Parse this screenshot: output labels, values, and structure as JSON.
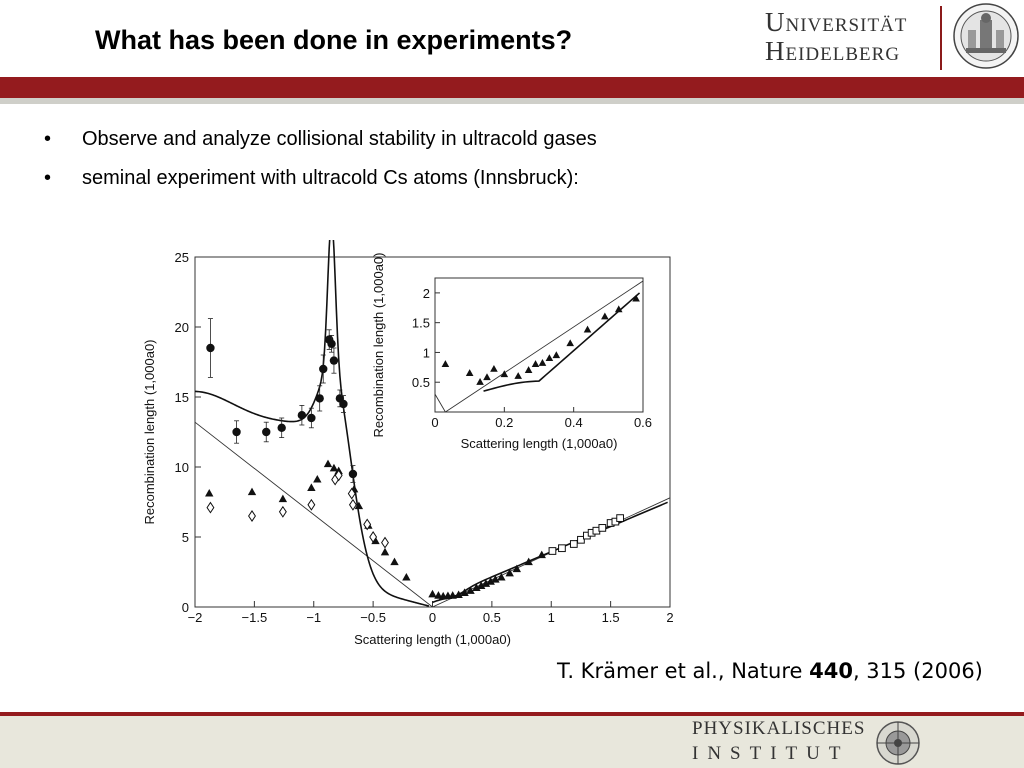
{
  "slide": {
    "title": "What has been done in experiments?",
    "bullets": [
      "Observe and analyze collisional stability in ultracold gases",
      "seminal experiment with ultracold Cs atoms (Innsbruck):"
    ],
    "bullet_symbol": "•",
    "citation_prefix": "T. Krämer et al., Nature ",
    "citation_volume": "440",
    "citation_suffix": ", 315 (2006)"
  },
  "header_logo": {
    "line1": "Universität",
    "line2": "Heidelberg",
    "icon": "university-seal-icon"
  },
  "footer_logo": {
    "line1": "PHYSIKALISCHES",
    "line2": "INSTITUT",
    "icon": "institute-emblem-icon"
  },
  "colors": {
    "accent": "#941b1e",
    "footer_bg": "#e8e7dc",
    "header_gray": "#cfcfc9"
  },
  "chart_data": [
    {
      "type": "scatter",
      "xlabel": "Scattering length (1,000a0)",
      "ylabel": "Recombination length (1,000a0)",
      "xlim": [
        -2,
        2
      ],
      "ylim": [
        0,
        25
      ],
      "xticks": [
        "−2",
        "−1.5",
        "−1",
        "−0.5",
        "0",
        "0.5",
        "1",
        "1.5",
        "2"
      ],
      "xtick_values": [
        -2,
        -1.5,
        -1,
        -0.5,
        0,
        0.5,
        1,
        1.5,
        2
      ],
      "yticks": [
        "0",
        "5",
        "10",
        "15",
        "20",
        "25"
      ],
      "ytick_values": [
        0,
        5,
        10,
        15,
        20,
        25
      ],
      "series": [
        {
          "marker": "circle",
          "points": [
            [
              -1.87,
              18.5
            ],
            [
              -1.65,
              12.5
            ],
            [
              -1.4,
              12.5
            ],
            [
              -1.27,
              12.8
            ],
            [
              -1.1,
              13.7
            ],
            [
              -1.02,
              13.5
            ],
            [
              -0.95,
              14.9
            ],
            [
              -0.92,
              17.0
            ],
            [
              -0.87,
              19.1
            ],
            [
              -0.85,
              18.8
            ],
            [
              -0.83,
              17.6
            ],
            [
              -0.78,
              14.9
            ],
            [
              -0.75,
              14.5
            ],
            [
              -0.67,
              9.5
            ]
          ],
          "errors": [
            2.1,
            0.8,
            0.7,
            0.7,
            0.7,
            0.7,
            0.9,
            1.0,
            0.7,
            0.6,
            0.9,
            0.6,
            0.6,
            0.6
          ]
        },
        {
          "marker": "triangle",
          "points": [
            [
              -1.88,
              8.1
            ],
            [
              -1.52,
              8.2
            ],
            [
              -1.26,
              7.7
            ],
            [
              -1.02,
              8.5
            ],
            [
              -0.97,
              9.1
            ],
            [
              -0.88,
              10.2
            ],
            [
              -0.83,
              9.9
            ],
            [
              -0.79,
              9.7
            ],
            [
              -0.66,
              8.4
            ],
            [
              -0.62,
              7.2
            ],
            [
              -0.54,
              5.8
            ],
            [
              -0.48,
              4.7
            ],
            [
              -0.4,
              3.9
            ],
            [
              -0.32,
              3.2
            ],
            [
              -0.22,
              2.1
            ],
            [
              0.0,
              0.9
            ],
            [
              0.05,
              0.8
            ],
            [
              0.09,
              0.75
            ],
            [
              0.13,
              0.78
            ],
            [
              0.17,
              0.8
            ],
            [
              0.22,
              0.85
            ],
            [
              0.27,
              1.0
            ],
            [
              0.32,
              1.15
            ],
            [
              0.37,
              1.35
            ],
            [
              0.41,
              1.5
            ],
            [
              0.45,
              1.65
            ],
            [
              0.49,
              1.8
            ],
            [
              0.53,
              1.95
            ],
            [
              0.58,
              2.1
            ],
            [
              0.65,
              2.4
            ],
            [
              0.71,
              2.7
            ],
            [
              0.81,
              3.2
            ],
            [
              0.92,
              3.7
            ]
          ]
        },
        {
          "marker": "diamond",
          "points": [
            [
              -1.87,
              7.1
            ],
            [
              -1.52,
              6.5
            ],
            [
              -1.26,
              6.8
            ],
            [
              -1.02,
              7.3
            ],
            [
              -0.82,
              9.1
            ],
            [
              -0.79,
              9.4
            ],
            [
              -0.67,
              7.3
            ],
            [
              -0.68,
              8.1
            ],
            [
              -0.55,
              5.9
            ],
            [
              -0.5,
              5.0
            ],
            [
              -0.4,
              4.6
            ]
          ]
        },
        {
          "marker": "square",
          "points": [
            [
              1.01,
              4.0
            ],
            [
              1.09,
              4.2
            ],
            [
              1.19,
              4.5
            ],
            [
              1.25,
              4.8
            ],
            [
              1.3,
              5.1
            ],
            [
              1.34,
              5.3
            ],
            [
              1.38,
              5.45
            ],
            [
              1.43,
              5.65
            ],
            [
              1.5,
              6.0
            ],
            [
              1.54,
              6.1
            ],
            [
              1.58,
              6.35
            ]
          ]
        }
      ]
    },
    {
      "type": "scatter",
      "xlabel": "Scattering length (1,000a0)",
      "ylabel": "Recombination length (1,000a0)",
      "xlim": [
        0,
        0.6
      ],
      "ylim": [
        0,
        2.25
      ],
      "xticks": [
        "0",
        "0.2",
        "0.4",
        "0.6"
      ],
      "xtick_values": [
        0,
        0.2,
        0.4,
        0.6
      ],
      "yticks": [
        "0.5",
        "1",
        "1.5",
        "2"
      ],
      "ytick_values": [
        0.5,
        1,
        1.5,
        2
      ],
      "series": [
        {
          "marker": "triangle",
          "points": [
            [
              0.03,
              0.8
            ],
            [
              0.1,
              0.65
            ],
            [
              0.13,
              0.5
            ],
            [
              0.15,
              0.58
            ],
            [
              0.17,
              0.72
            ],
            [
              0.2,
              0.63
            ],
            [
              0.24,
              0.6
            ],
            [
              0.27,
              0.7
            ],
            [
              0.29,
              0.8
            ],
            [
              0.31,
              0.82
            ],
            [
              0.33,
              0.9
            ],
            [
              0.35,
              0.95
            ],
            [
              0.39,
              1.15
            ],
            [
              0.44,
              1.38
            ],
            [
              0.49,
              1.6
            ],
            [
              0.53,
              1.72
            ],
            [
              0.58,
              1.9
            ]
          ]
        }
      ]
    }
  ]
}
